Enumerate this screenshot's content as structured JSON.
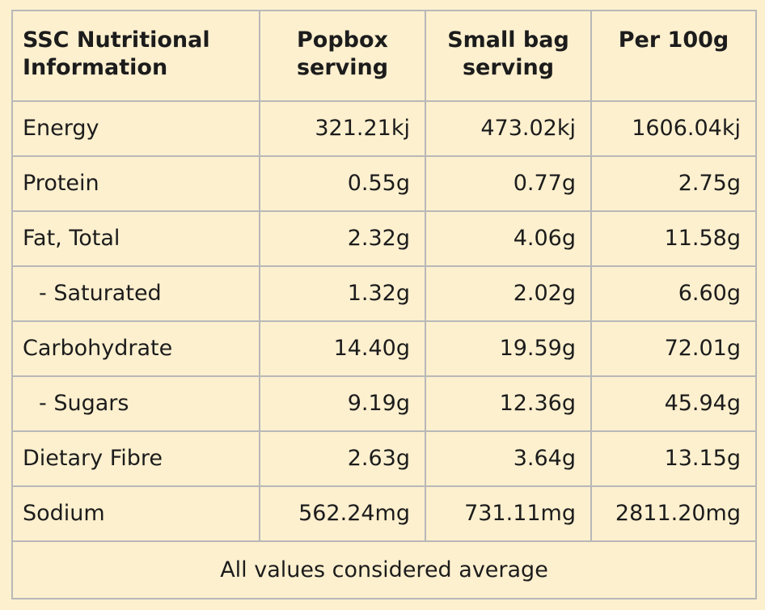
{
  "table": {
    "headers": [
      [
        "SSC Nutritional",
        "Information"
      ],
      [
        "Popbox",
        "serving"
      ],
      [
        "Small bag",
        "serving"
      ],
      [
        "Per 100g"
      ]
    ],
    "rows": [
      {
        "label": "Energy",
        "popbox": "321.21kj",
        "small_bag": "473.02kj",
        "per_100g": "1606.04kj",
        "sub": false
      },
      {
        "label": "Protein",
        "popbox": "0.55g",
        "small_bag": "0.77g",
        "per_100g": "2.75g",
        "sub": false
      },
      {
        "label": "Fat, Total",
        "popbox": "2.32g",
        "small_bag": "4.06g",
        "per_100g": "11.58g",
        "sub": false
      },
      {
        "label": "- Saturated",
        "popbox": "1.32g",
        "small_bag": "2.02g",
        "per_100g": "6.60g",
        "sub": true
      },
      {
        "label": "Carbohydrate",
        "popbox": "14.40g",
        "small_bag": "19.59g",
        "per_100g": "72.01g",
        "sub": false
      },
      {
        "label": "- Sugars",
        "popbox": "9.19g",
        "small_bag": "12.36g",
        "per_100g": "45.94g",
        "sub": true
      },
      {
        "label": "Dietary Fibre",
        "popbox": "2.63g",
        "small_bag": "3.64g",
        "per_100g": "13.15g",
        "sub": false
      },
      {
        "label": "Sodium",
        "popbox": "562.24mg",
        "small_bag": "731.11mg",
        "per_100g": "2811.20mg",
        "sub": false
      }
    ],
    "footer": "All values considered average"
  },
  "colors": {
    "background": "#fdf0cf",
    "border": "#b8b8b8",
    "text": "#1c1c1c"
  }
}
